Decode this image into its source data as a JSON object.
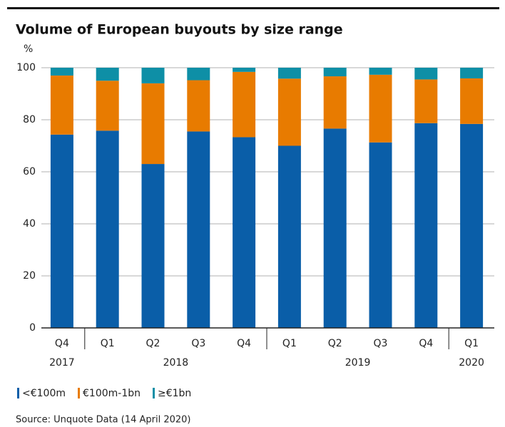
{
  "chart_data": {
    "type": "stacked_bar",
    "title": "Volume of European buyouts by size range",
    "y_unit": "%",
    "categories": [
      "Q4",
      "Q1",
      "Q2",
      "Q3",
      "Q4",
      "Q1",
      "Q2",
      "Q3",
      "Q4",
      "Q1"
    ],
    "groups": [
      {
        "label": "2017",
        "count": 1
      },
      {
        "label": "2018",
        "count": 4
      },
      {
        "label": "2019",
        "count": 4
      },
      {
        "label": "2020",
        "count": 1
      }
    ],
    "series": [
      {
        "name": "<€100m",
        "color": "#0a5ea8",
        "values": [
          74.3,
          75.8,
          63,
          75.5,
          73.3,
          70,
          76.6,
          71.3,
          78.7,
          78.4
        ]
      },
      {
        "name": "€100m-1bn",
        "color": "#e87b00",
        "values": [
          22.7,
          19.2,
          31,
          19.7,
          25.1,
          25.8,
          20.1,
          26,
          16.8,
          17.5
        ]
      },
      {
        "name": "≥€1bn",
        "color": "#0e8fa6",
        "values": [
          3,
          5,
          6,
          4.8,
          1.6,
          4.2,
          3.3,
          2.7,
          4.5,
          4.1
        ]
      }
    ],
    "ylim": [
      0,
      100
    ],
    "yticks": [
      0,
      20,
      40,
      60,
      80,
      100
    ],
    "grid": true,
    "source": "Source: Unquote Data (14 April 2020)"
  }
}
